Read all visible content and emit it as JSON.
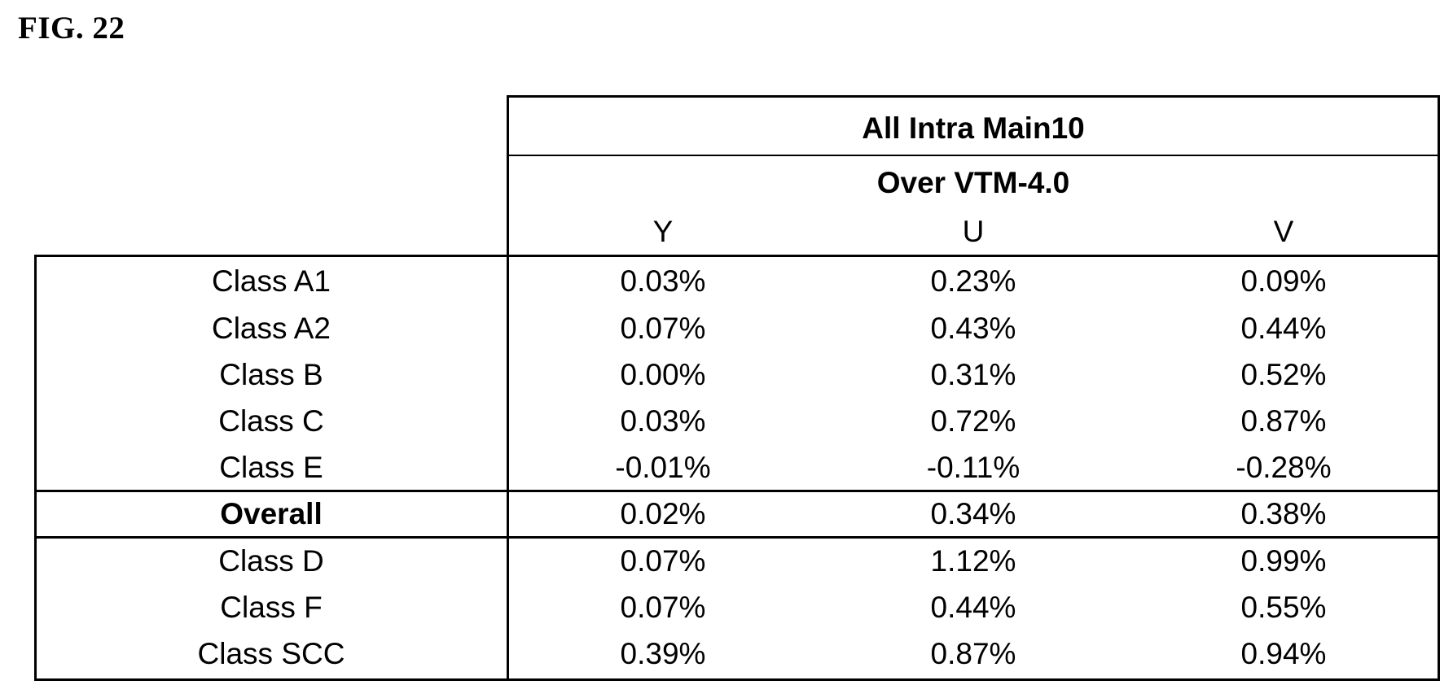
{
  "figure": {
    "label": "FIG. 22"
  },
  "table": {
    "group_header": "All Intra Main10",
    "sub_header": "Over VTM-4.0",
    "columns": [
      "Y",
      "U",
      "V"
    ],
    "sections": [
      {
        "rows": [
          {
            "label": "Class A1",
            "values": [
              "0.03%",
              "0.23%",
              "0.09%"
            ]
          },
          {
            "label": "Class A2",
            "values": [
              "0.07%",
              "0.43%",
              "0.44%"
            ]
          },
          {
            "label": "Class B",
            "values": [
              "0.00%",
              "0.31%",
              "0.52%"
            ]
          },
          {
            "label": "Class C",
            "values": [
              "0.03%",
              "0.72%",
              "0.87%"
            ]
          },
          {
            "label": "Class E",
            "values": [
              "-0.01%",
              "-0.11%",
              "-0.28%"
            ]
          }
        ]
      },
      {
        "rows": [
          {
            "label": "Overall",
            "values": [
              "0.02%",
              "0.34%",
              "0.38%"
            ],
            "bold_label": true
          }
        ]
      },
      {
        "rows": [
          {
            "label": "Class D",
            "values": [
              "0.07%",
              "1.12%",
              "0.99%"
            ]
          },
          {
            "label": "Class F",
            "values": [
              "0.07%",
              "0.44%",
              "0.55%"
            ]
          },
          {
            "label": "Class SCC",
            "values": [
              "0.39%",
              "0.87%",
              "0.94%"
            ]
          }
        ]
      }
    ]
  }
}
